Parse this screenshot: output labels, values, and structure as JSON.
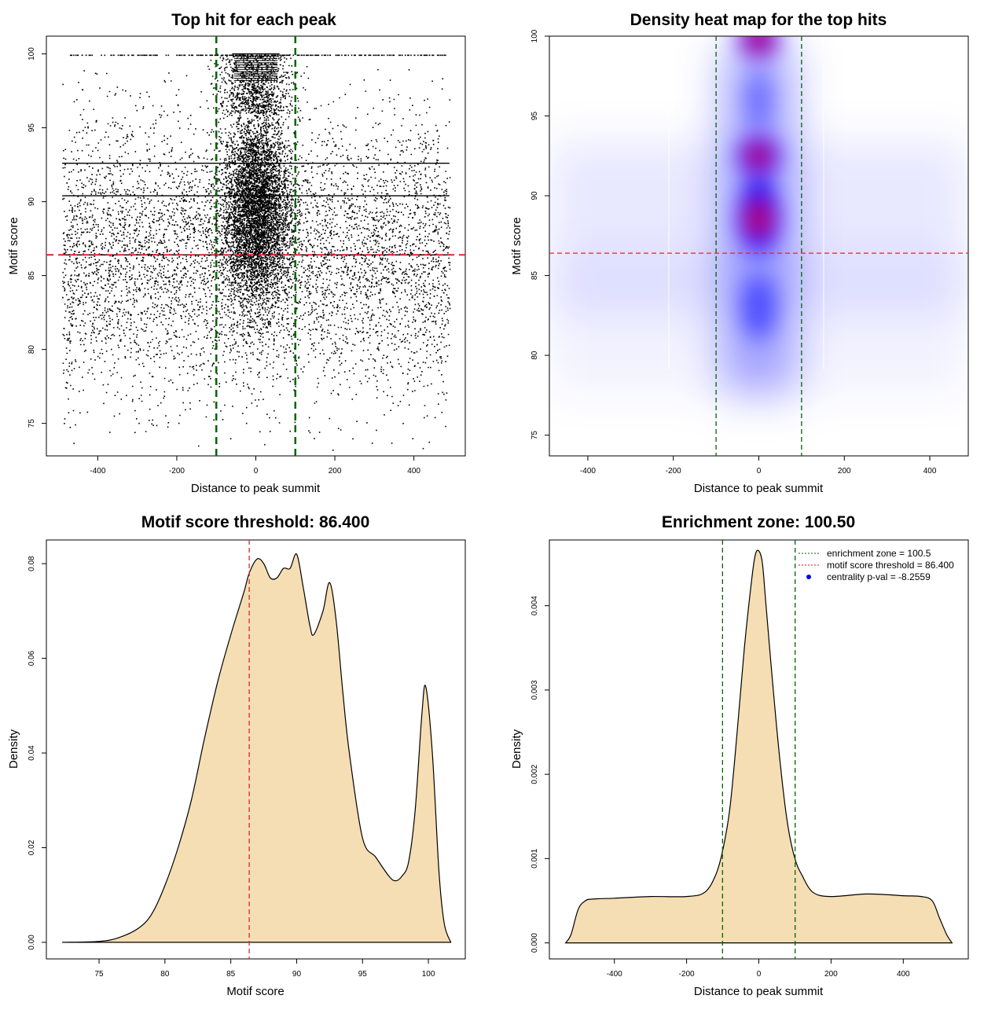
{
  "chart_data": [
    {
      "type": "scatter",
      "title": "Top hit for each peak",
      "xlabel": "Distance to peak summit",
      "ylabel": "Motif score",
      "xlim": [
        -530,
        530
      ],
      "ylim": [
        72.8,
        101.2
      ],
      "x_ticks": [
        -400,
        -200,
        0,
        200,
        400
      ],
      "x_tick_labels": [
        "-400",
        "-200",
        "0",
        "200",
        "400"
      ],
      "y_ticks": [
        75,
        80,
        85,
        90,
        95,
        100
      ],
      "y_tick_labels": [
        "75",
        "80",
        "85",
        "90",
        "95",
        "100"
      ],
      "vlines": [
        -100,
        100
      ],
      "hline": 86.4,
      "horizontal_bands": [
        100.0,
        92.6,
        90.4,
        86.4
      ],
      "description_points": "about 15000 top hits; dense cloud centred at 0 between scores 84 and 96, uniform background from -490 to 490"
    },
    {
      "type": "heatmap",
      "title": "Density heat map for the top hits",
      "xlabel": "Distance to peak summit",
      "ylabel": "Motif score",
      "xlim": [
        -490,
        490
      ],
      "ylim": [
        73.7,
        100.0
      ],
      "x_ticks": [
        -400,
        -200,
        0,
        200,
        400
      ],
      "x_tick_labels": [
        "-400",
        "-200",
        "0",
        "200",
        "400"
      ],
      "y_ticks": [
        75,
        80,
        85,
        90,
        95,
        100
      ],
      "y_tick_labels": [
        "75",
        "80",
        "85",
        "90",
        "95",
        "100"
      ],
      "vlines": [
        -100,
        100
      ],
      "hline": 86.4,
      "hotspots": [
        {
          "x": 0,
          "y": 99.8,
          "intensity": 1.0
        },
        {
          "x": 0,
          "y": 92.5,
          "intensity": 1.0
        },
        {
          "x": 0,
          "y": 88.5,
          "intensity": 0.9
        }
      ]
    },
    {
      "type": "area",
      "title": "Motif score threshold: 86.400",
      "xlabel": "Motif score",
      "ylabel": "Density",
      "xlim": [
        71.0,
        102.8
      ],
      "ylim": [
        -0.0035,
        0.085
      ],
      "x_ticks": [
        75,
        80,
        85,
        90,
        95,
        100
      ],
      "x_tick_labels": [
        "75",
        "80",
        "85",
        "90",
        "95",
        "100"
      ],
      "y_ticks": [
        0,
        0.02,
        0.04,
        0.06,
        0.08
      ],
      "y_tick_labels": [
        "0.00",
        "0.02",
        "0.04",
        "0.06",
        "0.08"
      ],
      "vline": 86.4,
      "x": [
        72.2,
        75,
        76.5,
        78,
        79,
        80,
        81,
        82,
        83,
        84,
        85,
        86,
        86.4,
        87,
        87.5,
        88,
        88.5,
        89,
        89.5,
        90,
        90.5,
        91,
        91.3,
        92,
        92.5,
        93,
        93.5,
        94,
        95,
        96,
        97,
        97.5,
        98,
        98.5,
        99,
        99.5,
        99.8,
        100.3,
        100.8,
        101.2,
        101.7
      ],
      "y": [
        0.0,
        0.0002,
        0.001,
        0.003,
        0.006,
        0.012,
        0.02,
        0.03,
        0.043,
        0.055,
        0.065,
        0.074,
        0.078,
        0.081,
        0.08,
        0.077,
        0.077,
        0.079,
        0.079,
        0.082,
        0.075,
        0.067,
        0.065,
        0.07,
        0.076,
        0.068,
        0.053,
        0.04,
        0.022,
        0.018,
        0.014,
        0.013,
        0.014,
        0.017,
        0.028,
        0.048,
        0.054,
        0.04,
        0.015,
        0.004,
        0.0
      ]
    },
    {
      "type": "area",
      "title": "Enrichment zone: 100.50",
      "xlabel": "Distance to peak summit",
      "ylabel": "Density",
      "xlim": [
        -580,
        580
      ],
      "ylim": [
        -0.00019,
        0.00478
      ],
      "x_ticks": [
        -400,
        -200,
        0,
        200,
        400
      ],
      "x_tick_labels": [
        "-400",
        "-200",
        "0",
        "200",
        "400"
      ],
      "y_ticks": [
        0,
        0.001,
        0.002,
        0.003,
        0.004
      ],
      "y_tick_labels": [
        "0.000",
        "0.001",
        "0.002",
        "0.003",
        "0.004"
      ],
      "vlines": [
        -100.5,
        100.5
      ],
      "legend": {
        "position": "top-right",
        "entries": [
          {
            "label": "enrichment zone = 100.5",
            "color": "#006400",
            "style": "dotted-line"
          },
          {
            "label": "motif score threshold = 86.400",
            "color": "#ff0000",
            "style": "dotted-line"
          },
          {
            "label": "centrality p-val = -8.2559",
            "color": "#0000ff",
            "style": "point"
          }
        ]
      },
      "x": [
        -535,
        -520,
        -500,
        -480,
        -460,
        -400,
        -300,
        -200,
        -150,
        -120,
        -100,
        -80,
        -60,
        -40,
        -20,
        -10,
        0,
        10,
        20,
        40,
        60,
        80,
        100,
        120,
        150,
        200,
        300,
        400,
        450,
        480,
        500,
        520,
        535
      ],
      "y": [
        0.0,
        0.0001,
        0.0004,
        0.0005,
        0.00052,
        0.00053,
        0.00055,
        0.00055,
        0.0006,
        0.0008,
        0.0011,
        0.0016,
        0.0025,
        0.0035,
        0.0043,
        0.0046,
        0.00465,
        0.0045,
        0.004,
        0.003,
        0.0021,
        0.0014,
        0.001,
        0.0008,
        0.0006,
        0.00055,
        0.00058,
        0.00056,
        0.00055,
        0.0005,
        0.0003,
        0.0001,
        0.0
      ]
    }
  ],
  "colors": {
    "green_line": "#006400",
    "red_line": "#e8202a",
    "fill": "#f5deb3",
    "heat_low": "#ffffff",
    "heat_mid": "#0000ff",
    "heat_high": "#ff0000"
  }
}
